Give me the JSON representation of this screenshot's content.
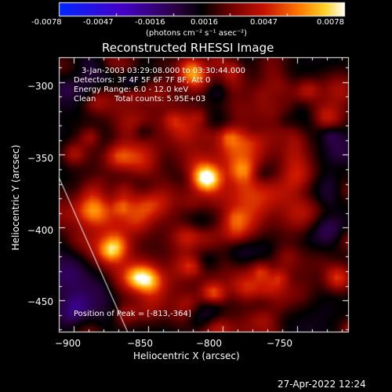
{
  "colorbar": {
    "tick_labels": [
      "-0.0078",
      "-0.0047",
      "-0.0016",
      "0.0016",
      "0.0047",
      "0.0078"
    ],
    "units_label": "(photons cm⁻² s⁻¹ asec⁻²)",
    "range": [
      -0.0078,
      0.0078
    ]
  },
  "plot": {
    "title": "Reconstructed RHESSI Image",
    "x_axis_label": "Heliocentric X (arcsec)",
    "y_axis_label": "Heliocentric Y (arcsec)",
    "x_tick_labels": [
      "−900",
      "−850",
      "−800",
      "−750"
    ],
    "y_tick_labels": [
      "−300",
      "−350",
      "−400",
      "−450"
    ],
    "xlim": [
      -910,
      -715
    ],
    "ylim": [
      -472,
      -283
    ]
  },
  "annotations": {
    "time_range": "3-Jan-2003 03:29:08.000 to 03:30:44.000",
    "detectors": "Detectors: 3F 4F 5F 6F 7F 8F, Att 0",
    "energy": "Energy Range: 6.0 - 12.0 keV",
    "clean": "Clean",
    "total_counts": "Total counts: 5.95E+03",
    "peak": "Position of Peak = [-813,-364]"
  },
  "peak": {
    "x": -813,
    "y": -364
  },
  "footer": {
    "timestamp": "27-Apr-2022 12:24"
  },
  "colors": {
    "background": "#000000",
    "text": "#ffffff",
    "limb_line": "#ffffff"
  }
}
